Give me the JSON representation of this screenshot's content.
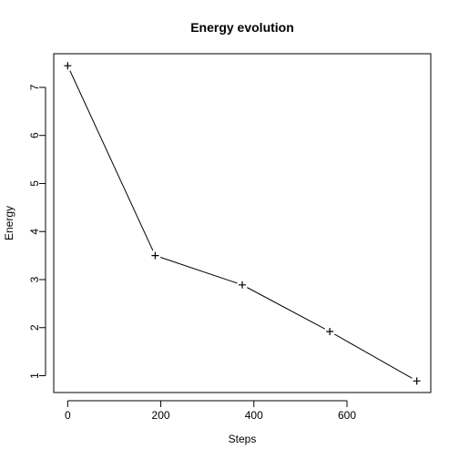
{
  "chart_data": {
    "type": "line",
    "title": "Energy evolution",
    "xlabel": "Steps",
    "ylabel": "Energy",
    "x": [
      0,
      188,
      375,
      563,
      750
    ],
    "series": [
      {
        "values": [
          7.45,
          3.5,
          2.89,
          1.92,
          0.89
        ]
      }
    ],
    "xlim": [
      -30,
      780
    ],
    "ylim": [
      0.65,
      7.7
    ],
    "x_ticks": [
      0,
      200,
      400,
      600
    ],
    "x_tick_labels": [
      "0",
      "200",
      "400",
      "600"
    ],
    "y_ticks": [
      1,
      2,
      3,
      4,
      5,
      6,
      7
    ],
    "y_tick_labels": [
      "1",
      "2",
      "3",
      "4",
      "5",
      "6",
      "7"
    ],
    "marker": "plus",
    "grid": false,
    "legend": "none",
    "colors": {
      "line": "#000000",
      "marker": "#000000",
      "axis": "#000000"
    }
  }
}
